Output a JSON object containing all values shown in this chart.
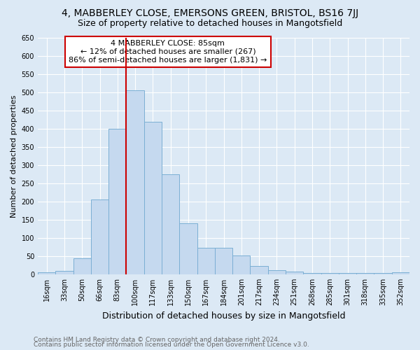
{
  "title1": "4, MABBERLEY CLOSE, EMERSONS GREEN, BRISTOL, BS16 7JJ",
  "title2": "Size of property relative to detached houses in Mangotsfield",
  "xlabel": "Distribution of detached houses by size in Mangotsfield",
  "ylabel": "Number of detached properties",
  "categories": [
    "16sqm",
    "33sqm",
    "50sqm",
    "66sqm",
    "83sqm",
    "100sqm",
    "117sqm",
    "133sqm",
    "150sqm",
    "167sqm",
    "184sqm",
    "201sqm",
    "217sqm",
    "234sqm",
    "251sqm",
    "268sqm",
    "285sqm",
    "301sqm",
    "318sqm",
    "335sqm",
    "352sqm"
  ],
  "values": [
    5,
    10,
    45,
    205,
    400,
    505,
    420,
    275,
    140,
    73,
    73,
    52,
    23,
    12,
    8,
    3,
    3,
    3,
    3,
    3,
    5
  ],
  "bar_color": "#c5d9ef",
  "bar_edge_color": "#7bafd4",
  "vline_x_index": 4,
  "vline_color": "#cc0000",
  "annotation_line1": "4 MABBERLEY CLOSE: 85sqm",
  "annotation_line2": "← 12% of detached houses are smaller (267)",
  "annotation_line3": "86% of semi-detached houses are larger (1,831) →",
  "annotation_box_facecolor": "#ffffff",
  "annotation_box_edgecolor": "#cc0000",
  "ylim": [
    0,
    650
  ],
  "yticks": [
    0,
    50,
    100,
    150,
    200,
    250,
    300,
    350,
    400,
    450,
    500,
    550,
    600,
    650
  ],
  "footnote1": "Contains HM Land Registry data © Crown copyright and database right 2024.",
  "footnote2": "Contains public sector information licensed under the Open Government Licence v3.0.",
  "bg_color": "#dce9f5",
  "grid_color": "#ffffff",
  "title1_fontsize": 10,
  "title2_fontsize": 9,
  "xlabel_fontsize": 9,
  "ylabel_fontsize": 8,
  "tick_fontsize": 7,
  "annotation_fontsize": 8,
  "footnote_fontsize": 6.5
}
